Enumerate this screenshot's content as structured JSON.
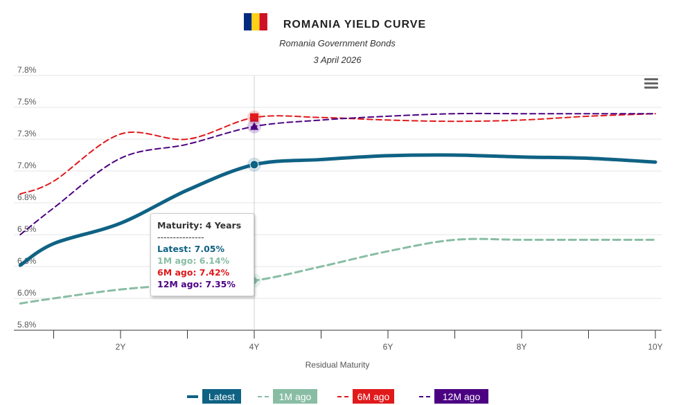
{
  "chart_data": {
    "type": "line",
    "title": "ROMANIA YIELD CURVE",
    "subtitle": "Romania Government Bonds",
    "date": "3 April 2026",
    "xlabel": "Residual Maturity",
    "ylabel": "",
    "x": [
      0.5,
      1,
      2,
      3,
      4,
      5,
      6,
      7,
      8,
      9,
      10
    ],
    "xlim": [
      0.5,
      10
    ],
    "ylim": [
      5.75,
      7.75
    ],
    "yticks": [
      5.75,
      6.0,
      6.25,
      6.5,
      6.75,
      7.0,
      7.25,
      7.5,
      7.75
    ],
    "ytick_labels": [
      "5.8%",
      "6.0%",
      "6.3%",
      "6.5%",
      "6.8%",
      "7.0%",
      "7.3%",
      "7.5%",
      "7.8%"
    ],
    "xticks": [
      2,
      4,
      6,
      8,
      10
    ],
    "xtick_labels": [
      "2Y",
      "4Y",
      "6Y",
      "8Y",
      "10Y"
    ],
    "grid": true,
    "legend": "bottom",
    "series": [
      {
        "name": "Latest",
        "color": "#0f6284",
        "dash": false,
        "values": [
          6.26,
          6.43,
          6.59,
          6.85,
          7.05,
          7.09,
          7.12,
          7.125,
          7.11,
          7.1,
          7.07
        ]
      },
      {
        "name": "1M ago",
        "color": "#88bda4",
        "dash": true,
        "values": [
          5.96,
          6.0,
          6.07,
          6.11,
          6.14,
          6.25,
          6.37,
          6.46,
          6.46,
          6.46,
          6.46
        ]
      },
      {
        "name": "6M ago",
        "color": "#e0191b",
        "dash": true,
        "values": [
          6.82,
          6.92,
          7.29,
          7.25,
          7.42,
          7.42,
          7.4,
          7.39,
          7.4,
          7.43,
          7.45
        ]
      },
      {
        "name": "12M ago",
        "color": "#4b0082",
        "dash": true,
        "values": [
          6.5,
          6.71,
          7.1,
          7.21,
          7.35,
          7.4,
          7.43,
          7.45,
          7.45,
          7.45,
          7.45
        ]
      }
    ]
  },
  "tooltip": {
    "header": "Maturity: 4 Years",
    "divider": "---------------",
    "lines": [
      "Latest: 7.05%",
      "1M ago: 6.14%",
      "6M ago: 7.42%",
      "12M ago: 7.35%"
    ]
  },
  "flag_colors": [
    "#002b7f",
    "#fcd116",
    "#ce1126"
  ]
}
